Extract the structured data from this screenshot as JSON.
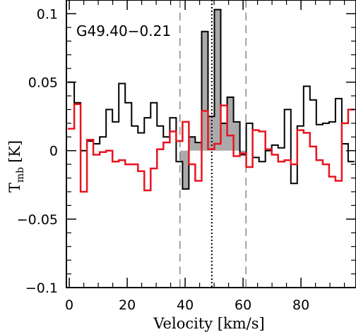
{
  "chart_data": {
    "type": "line",
    "step": true,
    "source_name": "G49.40−0.21",
    "xlabel": "Velocity [km/s]",
    "ylabel_main": "T",
    "ylabel_sub": "mb",
    "ylabel_unit": "[K]",
    "xlim": [
      -1,
      99
    ],
    "ylim": [
      -0.1,
      0.11
    ],
    "x_ticks": [
      0,
      20,
      40,
      60,
      80
    ],
    "x_tick_labels": [
      "0",
      "20",
      "40",
      "60",
      "80"
    ],
    "y_ticks": [
      -0.1,
      -0.05,
      0,
      0.05,
      0.1
    ],
    "y_tick_labels": [
      "−0.1",
      "−0.05",
      "0",
      "0.05",
      "0.1"
    ],
    "vlines": [
      {
        "x": 38.2,
        "style": "dashed"
      },
      {
        "x": 49.2,
        "style": "dotted"
      },
      {
        "x": 61.0,
        "style": "dashed"
      }
    ],
    "fill_range": [
      38.2,
      61.0
    ],
    "fill_color": "#aaaaaa",
    "series": [
      {
        "color": "#000000",
        "x": [
          -0.5,
          1.7,
          3.9,
          6.1,
          8.3,
          10.5,
          12.7,
          14.9,
          17.1,
          19.3,
          21.5,
          23.7,
          25.9,
          28.1,
          30.3,
          32.5,
          34.7,
          36.9,
          39.1,
          41.3,
          43.5,
          45.7,
          47.9,
          50.1,
          52.3,
          54.5,
          56.7,
          58.9,
          61.1,
          63.3,
          65.5,
          67.7,
          69.9,
          72.1,
          74.3,
          76.5,
          78.7,
          80.9,
          83.1,
          85.3,
          87.5,
          89.7,
          91.9,
          94.1,
          96.3
        ],
        "values": [
          0.05,
          0.035,
          0.0,
          0.007,
          0.005,
          0.01,
          0.03,
          0.021,
          0.049,
          0.035,
          0.018,
          0.013,
          0.024,
          0.035,
          0.018,
          0.01,
          0.024,
          -0.008,
          -0.028,
          0.01,
          0.006,
          0.087,
          0.025,
          0.103,
          0.02,
          0.039,
          0.021,
          -0.003,
          0.02,
          -0.005,
          -0.008,
          0.0,
          0.004,
          0.002,
          0.03,
          -0.024,
          0.018,
          0.047,
          0.037,
          0.019,
          0.02,
          0.021,
          0.038,
          0.005,
          -0.008
        ]
      },
      {
        "color": "#e8141e",
        "x": [
          -0.5,
          1.7,
          3.9,
          6.1,
          8.3,
          10.5,
          12.7,
          14.9,
          17.1,
          19.3,
          21.5,
          23.7,
          25.9,
          28.1,
          30.3,
          32.5,
          34.7,
          36.9,
          39.1,
          41.3,
          43.5,
          45.7,
          47.9,
          50.1,
          52.3,
          54.5,
          56.7,
          58.9,
          61.1,
          63.3,
          65.5,
          67.7,
          69.9,
          72.1,
          74.3,
          76.5,
          78.7,
          80.9,
          83.1,
          85.3,
          87.5,
          89.7,
          91.9,
          94.1,
          96.3
        ],
        "values": [
          0.016,
          0.034,
          -0.03,
          0.008,
          -0.003,
          -0.001,
          0.0,
          -0.008,
          -0.007,
          -0.01,
          -0.01,
          -0.015,
          -0.029,
          -0.013,
          0.001,
          0.006,
          0.014,
          0.007,
          0.021,
          -0.01,
          -0.022,
          0.029,
          0.001,
          0.005,
          0.033,
          0.011,
          -0.004,
          -0.002,
          -0.012,
          0.015,
          0.014,
          0.001,
          -0.003,
          -0.008,
          -0.007,
          -0.01,
          0.015,
          0.013,
          0.003,
          -0.007,
          -0.01,
          -0.019,
          -0.022,
          0.02,
          0.03
        ]
      }
    ]
  }
}
